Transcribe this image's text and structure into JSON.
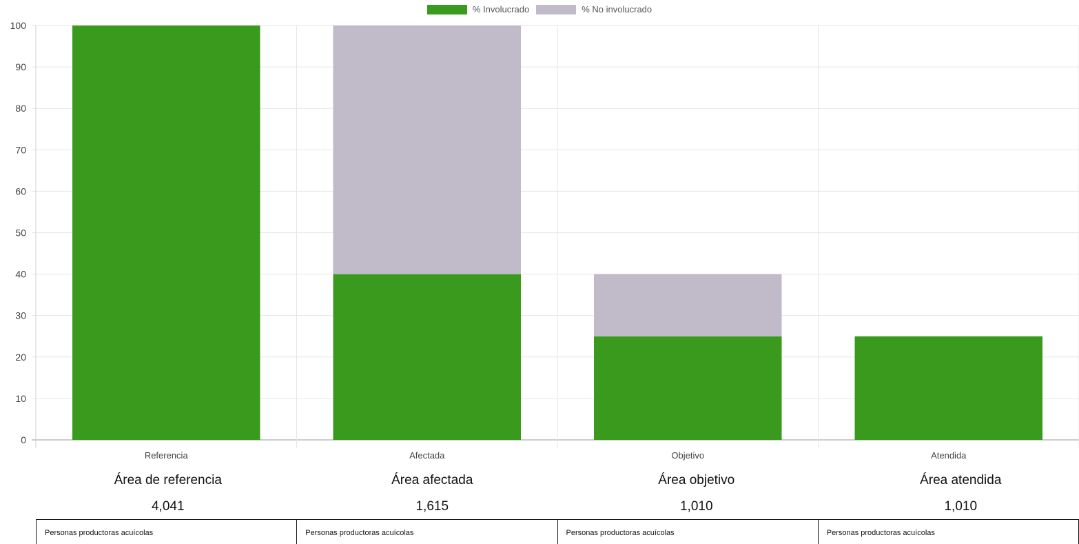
{
  "legend": [
    {
      "label": "% Involucrado",
      "color": "#3a9a1d"
    },
    {
      "label": "% No involucrado",
      "color": "#c1bbc9"
    }
  ],
  "chart_data": {
    "type": "bar",
    "stacked": true,
    "categories": [
      "Referencia",
      "Afectada",
      "Objetivo",
      "Atendida"
    ],
    "series": [
      {
        "name": "% Involucrado",
        "values": [
          100,
          40,
          25,
          25
        ],
        "color": "#3a9a1d"
      },
      {
        "name": "% No involucrado",
        "values": [
          0,
          60,
          15,
          0
        ],
        "color": "#c1bbc9"
      }
    ],
    "ylim": [
      0,
      100
    ],
    "yticks": [
      0,
      10,
      20,
      30,
      40,
      50,
      60,
      70,
      80,
      90,
      100
    ],
    "grid": true,
    "legend_position": "top-center"
  },
  "areas": [
    {
      "title": "Área de referencia",
      "count": "4,041",
      "description": "Personas productoras acuícolas"
    },
    {
      "title": "Área afectada",
      "count": "1,615",
      "description": "Personas productoras acuícolas"
    },
    {
      "title": "Área objetivo",
      "count": "1,010",
      "description": "Personas productoras acuícolas"
    },
    {
      "title": "Área atendida",
      "count": "1,010",
      "description": "Personas productoras acuícolas"
    }
  ]
}
